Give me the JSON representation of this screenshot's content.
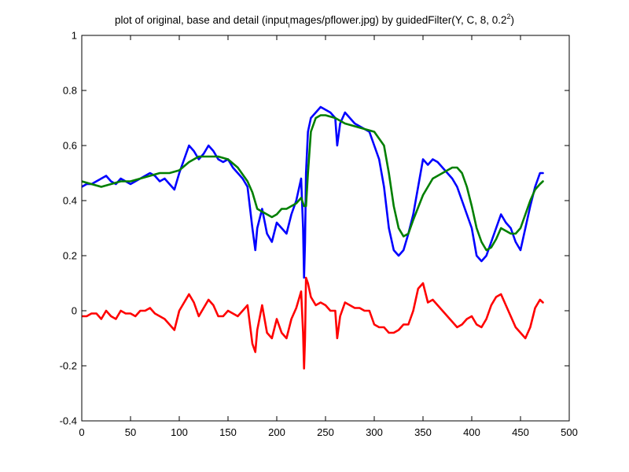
{
  "chart_data": {
    "type": "line",
    "title": "plot of original, base and detail (input",
    "title_subscript": "i",
    "title_mid": "mages/pflower.jpg) by guidedFilter(Y, C, 8, 0.2",
    "title_superscript": "2",
    "title_end": ")",
    "xlabel": "",
    "ylabel": "",
    "xlim": [
      0,
      500
    ],
    "ylim": [
      -0.4,
      1
    ],
    "x_ticks": [
      "0",
      "50",
      "100",
      "150",
      "200",
      "250",
      "300",
      "350",
      "400",
      "450",
      "500"
    ],
    "y_ticks": [
      "-0.4",
      "-0.2",
      "0",
      "0.2",
      "0.4",
      "0.6",
      "0.8",
      "1"
    ],
    "grid": false,
    "series": [
      {
        "color": "#0000ff",
        "x": [
          0,
          5,
          10,
          15,
          20,
          25,
          30,
          35,
          40,
          45,
          50,
          55,
          60,
          65,
          70,
          75,
          80,
          85,
          90,
          95,
          100,
          105,
          110,
          115,
          120,
          125,
          130,
          135,
          140,
          145,
          150,
          155,
          160,
          165,
          170,
          175,
          178,
          180,
          185,
          190,
          195,
          200,
          205,
          210,
          215,
          220,
          225,
          227,
          228,
          229,
          230,
          232,
          235,
          240,
          245,
          250,
          255,
          260,
          262,
          265,
          270,
          275,
          280,
          285,
          290,
          295,
          300,
          305,
          310,
          315,
          320,
          325,
          330,
          335,
          340,
          345,
          350,
          355,
          360,
          365,
          370,
          375,
          380,
          385,
          390,
          395,
          400,
          405,
          410,
          415,
          420,
          425,
          430,
          435,
          440,
          445,
          450,
          455,
          460,
          465,
          470,
          473
        ],
        "y": [
          0.45,
          0.46,
          0.46,
          0.47,
          0.48,
          0.49,
          0.47,
          0.46,
          0.48,
          0.47,
          0.46,
          0.47,
          0.48,
          0.49,
          0.5,
          0.49,
          0.47,
          0.48,
          0.46,
          0.44,
          0.5,
          0.55,
          0.6,
          0.58,
          0.55,
          0.57,
          0.6,
          0.58,
          0.55,
          0.54,
          0.55,
          0.52,
          0.5,
          0.48,
          0.45,
          0.3,
          0.22,
          0.3,
          0.37,
          0.28,
          0.25,
          0.32,
          0.3,
          0.28,
          0.35,
          0.4,
          0.48,
          0.3,
          0.12,
          0.25,
          0.5,
          0.65,
          0.7,
          0.72,
          0.74,
          0.73,
          0.72,
          0.7,
          0.6,
          0.68,
          0.72,
          0.7,
          0.68,
          0.67,
          0.66,
          0.65,
          0.6,
          0.55,
          0.45,
          0.3,
          0.22,
          0.2,
          0.22,
          0.28,
          0.35,
          0.45,
          0.55,
          0.53,
          0.55,
          0.54,
          0.52,
          0.5,
          0.48,
          0.45,
          0.4,
          0.35,
          0.3,
          0.2,
          0.18,
          0.2,
          0.25,
          0.3,
          0.35,
          0.32,
          0.3,
          0.25,
          0.22,
          0.3,
          0.38,
          0.45,
          0.5,
          0.5
        ]
      },
      {
        "color": "#007f00",
        "x": [
          0,
          10,
          20,
          30,
          40,
          50,
          60,
          70,
          80,
          90,
          100,
          110,
          120,
          130,
          140,
          150,
          160,
          170,
          175,
          180,
          185,
          190,
          195,
          200,
          205,
          210,
          215,
          220,
          225,
          228,
          230,
          232,
          235,
          240,
          245,
          250,
          260,
          270,
          280,
          290,
          300,
          310,
          315,
          320,
          325,
          330,
          335,
          340,
          350,
          360,
          370,
          380,
          385,
          390,
          395,
          400,
          405,
          410,
          415,
          420,
          425,
          430,
          435,
          440,
          445,
          450,
          455,
          460,
          465,
          470,
          473
        ],
        "y": [
          0.47,
          0.46,
          0.45,
          0.46,
          0.47,
          0.47,
          0.48,
          0.49,
          0.5,
          0.5,
          0.51,
          0.54,
          0.56,
          0.56,
          0.56,
          0.55,
          0.52,
          0.47,
          0.43,
          0.37,
          0.36,
          0.35,
          0.34,
          0.35,
          0.37,
          0.37,
          0.38,
          0.39,
          0.41,
          0.38,
          0.38,
          0.5,
          0.65,
          0.7,
          0.71,
          0.71,
          0.7,
          0.68,
          0.67,
          0.66,
          0.65,
          0.6,
          0.5,
          0.38,
          0.3,
          0.27,
          0.28,
          0.33,
          0.42,
          0.48,
          0.5,
          0.52,
          0.52,
          0.5,
          0.45,
          0.38,
          0.3,
          0.25,
          0.22,
          0.23,
          0.26,
          0.3,
          0.29,
          0.28,
          0.28,
          0.3,
          0.35,
          0.4,
          0.44,
          0.46,
          0.47
        ]
      },
      {
        "color": "#ff0000",
        "x": [
          0,
          5,
          10,
          15,
          20,
          25,
          30,
          35,
          40,
          45,
          50,
          55,
          60,
          65,
          70,
          75,
          80,
          85,
          90,
          95,
          100,
          105,
          110,
          115,
          120,
          125,
          130,
          135,
          140,
          145,
          150,
          155,
          160,
          165,
          170,
          175,
          178,
          180,
          185,
          190,
          195,
          200,
          205,
          210,
          215,
          220,
          225,
          227,
          228,
          229,
          230,
          232,
          235,
          240,
          245,
          250,
          255,
          260,
          262,
          265,
          270,
          275,
          280,
          285,
          290,
          295,
          300,
          305,
          310,
          315,
          320,
          325,
          330,
          335,
          340,
          345,
          350,
          355,
          360,
          365,
          370,
          375,
          380,
          385,
          390,
          395,
          400,
          405,
          410,
          415,
          420,
          425,
          430,
          435,
          440,
          445,
          450,
          455,
          460,
          465,
          470,
          473
        ],
        "y": [
          -0.02,
          -0.02,
          -0.01,
          -0.01,
          -0.03,
          0.0,
          -0.02,
          -0.03,
          0.0,
          -0.01,
          -0.01,
          -0.02,
          0.0,
          0.0,
          0.01,
          -0.01,
          -0.02,
          -0.03,
          -0.05,
          -0.07,
          0.0,
          0.03,
          0.06,
          0.03,
          -0.02,
          0.01,
          0.04,
          0.02,
          -0.02,
          -0.02,
          0.0,
          -0.01,
          -0.02,
          0.0,
          0.02,
          -0.12,
          -0.15,
          -0.07,
          0.02,
          -0.08,
          -0.1,
          -0.03,
          -0.08,
          -0.1,
          -0.03,
          0.01,
          0.07,
          -0.08,
          -0.21,
          -0.1,
          0.12,
          0.1,
          0.05,
          0.02,
          0.03,
          0.02,
          0.0,
          0.0,
          -0.1,
          -0.02,
          0.03,
          0.02,
          0.01,
          0.01,
          0.0,
          0.0,
          -0.05,
          -0.06,
          -0.06,
          -0.08,
          -0.08,
          -0.07,
          -0.05,
          -0.05,
          0.0,
          0.08,
          0.1,
          0.03,
          0.04,
          0.02,
          0.0,
          -0.02,
          -0.04,
          -0.06,
          -0.05,
          -0.03,
          -0.02,
          -0.05,
          -0.06,
          -0.03,
          0.02,
          0.05,
          0.06,
          0.02,
          -0.02,
          -0.06,
          -0.08,
          -0.1,
          -0.06,
          0.01,
          0.04,
          0.03
        ]
      }
    ]
  }
}
